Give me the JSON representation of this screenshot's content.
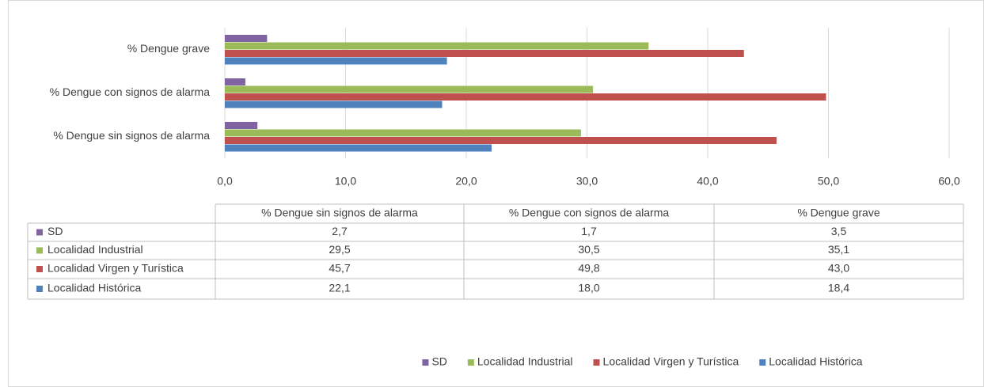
{
  "chart_data": {
    "type": "bar",
    "orientation": "horizontal",
    "categories": [
      "% Dengue sin signos de alarma",
      "% Dengue con signos de alarma",
      "% Dengue grave"
    ],
    "series": [
      {
        "name": "SD",
        "color": "#8064a2",
        "values": [
          2.7,
          1.7,
          3.5
        ],
        "value_labels": [
          "2,7",
          "1,7",
          "3,5"
        ]
      },
      {
        "name": "Localidad Industrial",
        "color": "#9bbb59",
        "values": [
          29.5,
          30.5,
          35.1
        ],
        "value_labels": [
          "29,5",
          "30,5",
          "35,1"
        ]
      },
      {
        "name": "Localidad Virgen y Turística",
        "color": "#c0504d",
        "values": [
          45.7,
          49.8,
          43.0
        ],
        "value_labels": [
          "45,7",
          "49,8",
          "43,0"
        ]
      },
      {
        "name": "Localidad Histórica",
        "color": "#4f81bd",
        "values": [
          22.1,
          18.0,
          18.4
        ],
        "value_labels": [
          "22,1",
          "18,0",
          "18,4"
        ]
      }
    ],
    "xlim": [
      0,
      60
    ],
    "xticks": [
      {
        "value": 0,
        "label": "0,0"
      },
      {
        "value": 10,
        "label": "10,0"
      },
      {
        "value": 20,
        "label": "20,0"
      },
      {
        "value": 30,
        "label": "30,0"
      },
      {
        "value": 40,
        "label": "40,0"
      },
      {
        "value": 50,
        "label": "50,0"
      },
      {
        "value": 60,
        "label": "60,0"
      }
    ],
    "grid": true,
    "data_table": true,
    "legend": "bottom"
  }
}
